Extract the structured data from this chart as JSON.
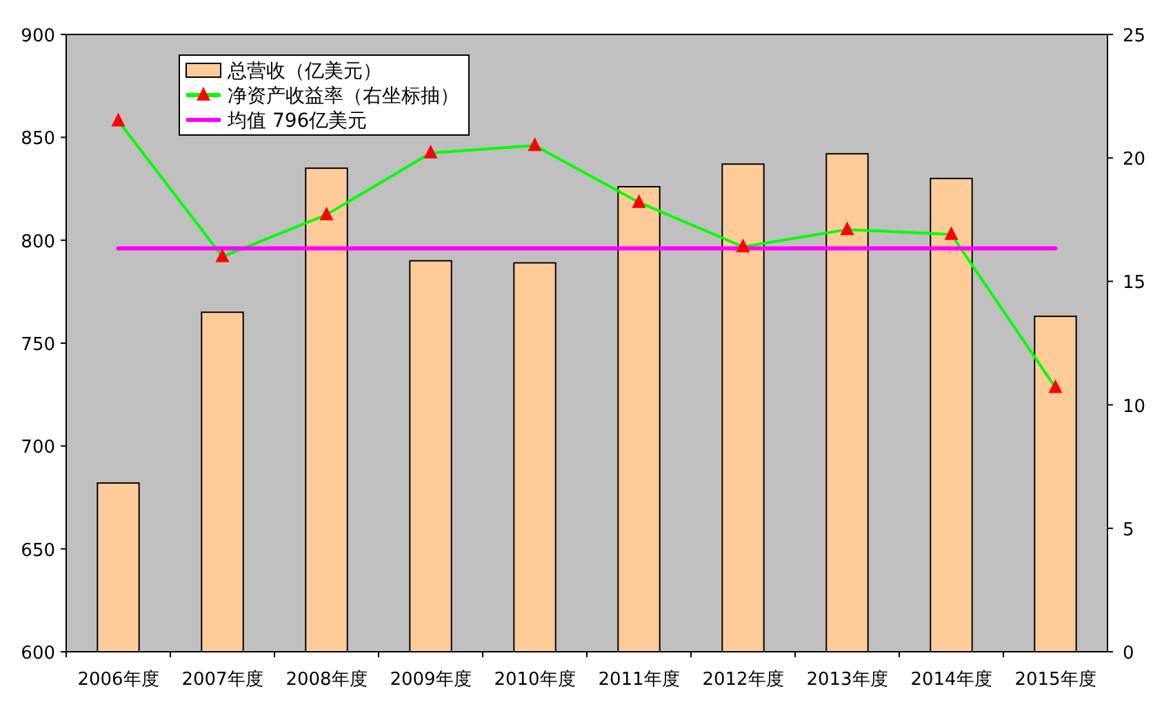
{
  "chart_data": {
    "type": "bar",
    "categories": [
      "2006年度",
      "2007年度",
      "2008年度",
      "2009年度",
      "2010年度",
      "2011年度",
      "2012年度",
      "2013年度",
      "2014年度",
      "2015年度"
    ],
    "series": [
      {
        "name": "总营收（亿美元）",
        "color": "#ffcc99",
        "values": [
          682,
          765,
          835,
          790,
          789,
          826,
          837,
          842,
          830,
          763
        ]
      },
      {
        "name": "净资产收益率（右坐标抽）",
        "type": "line",
        "axis": "y2",
        "color": "#00ff00",
        "colors": [
          "#ff0000",
          "#ff0000",
          "#ff0000",
          "#ff0000",
          "#ff0000",
          "#ff0000",
          "#ff0000",
          "#ff0000",
          "#ff0000",
          "#ff0000"
        ],
        "marker": "triangle",
        "values": [
          21.5,
          16.0,
          17.7,
          20.2,
          20.5,
          18.2,
          16.4,
          17.1,
          16.9,
          10.7
        ]
      },
      {
        "name": "均值 796亿美元",
        "type": "line",
        "color": "#ff00ff",
        "marker": "none",
        "values": [
          796,
          796,
          796,
          796,
          796,
          796,
          796,
          796,
          796,
          796
        ]
      }
    ],
    "ylim": [
      600,
      900
    ],
    "yticks": [
      600,
      650,
      700,
      750,
      800,
      850,
      900
    ],
    "y2lim": [
      0,
      25
    ],
    "y2ticks": [
      0,
      5,
      10,
      15,
      20,
      25
    ],
    "grid": false,
    "legend": "top left"
  }
}
